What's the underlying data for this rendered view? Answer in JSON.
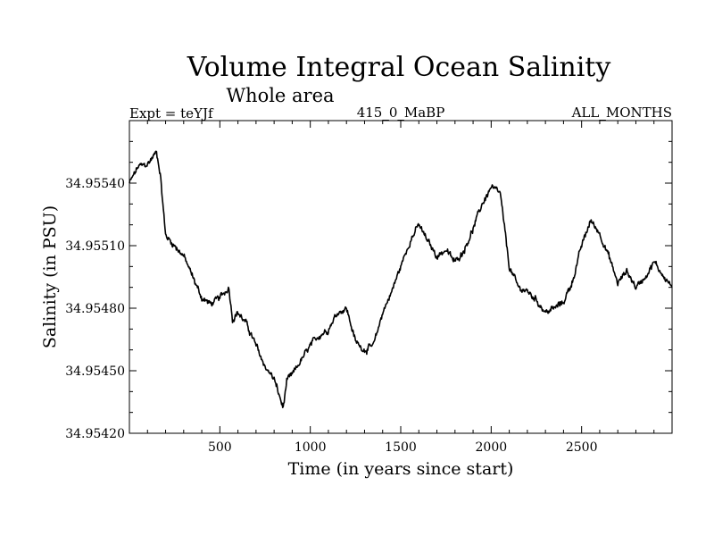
{
  "chart_data": {
    "type": "line",
    "title": "Volume Integral Ocean Salinity",
    "subtitle": "Whole area",
    "experiment_label": "Expt = teYJf",
    "run_label": "415_0_MaBP",
    "period_label": "ALL_MONTHS",
    "xlabel": "Time (in years since start)",
    "ylabel": "Salinity (in PSU)",
    "xlim": [
      0,
      3000
    ],
    "ylim": [
      34.9542,
      34.9557
    ],
    "xticks": [
      500,
      1000,
      1500,
      2000,
      2500
    ],
    "xtick_labels": [
      "500",
      "1000",
      "1500",
      "2000",
      "2500"
    ],
    "yticks": [
      34.9542,
      34.9545,
      34.9548,
      34.9551,
      34.9554
    ],
    "ytick_labels": [
      "34.95420",
      "34.95450",
      "34.95480",
      "34.95510",
      "34.95540"
    ],
    "series": [
      {
        "name": "salinity",
        "color": "#000000",
        "x": [
          0,
          50,
          100,
          150,
          170,
          200,
          250,
          300,
          350,
          400,
          450,
          500,
          550,
          570,
          600,
          650,
          700,
          750,
          800,
          850,
          870,
          900,
          950,
          1000,
          1050,
          1100,
          1150,
          1200,
          1250,
          1300,
          1350,
          1400,
          1450,
          1500,
          1550,
          1600,
          1650,
          1700,
          1750,
          1800,
          1850,
          1900,
          1950,
          2000,
          2050,
          2100,
          2150,
          2200,
          2250,
          2300,
          2350,
          2400,
          2450,
          2500,
          2550,
          2600,
          2650,
          2700,
          2750,
          2800,
          2850,
          2900,
          2950,
          3000
        ],
        "values": [
          34.9554,
          34.95548,
          34.95549,
          34.95555,
          34.95545,
          34.95515,
          34.9551,
          34.95505,
          34.95495,
          34.95485,
          34.95482,
          34.95485,
          34.9549,
          34.95475,
          34.95478,
          34.95472,
          34.95462,
          34.95452,
          34.95446,
          34.95432,
          34.95445,
          34.95448,
          34.95455,
          34.95462,
          34.95467,
          34.9547,
          34.95478,
          34.9548,
          34.95464,
          34.9546,
          34.95462,
          34.95478,
          34.95488,
          34.955,
          34.95512,
          34.9552,
          34.95512,
          34.95505,
          34.95508,
          34.95502,
          34.95508,
          34.95518,
          34.9553,
          34.95538,
          34.95535,
          34.955,
          34.9549,
          34.95488,
          34.95484,
          34.95478,
          34.9548,
          34.95483,
          34.95493,
          34.9551,
          34.95522,
          34.95516,
          34.95505,
          34.95492,
          34.95498,
          34.9549,
          34.95495,
          34.95502,
          34.95496,
          34.9549
        ]
      }
    ],
    "grid": false,
    "legend": "none"
  }
}
